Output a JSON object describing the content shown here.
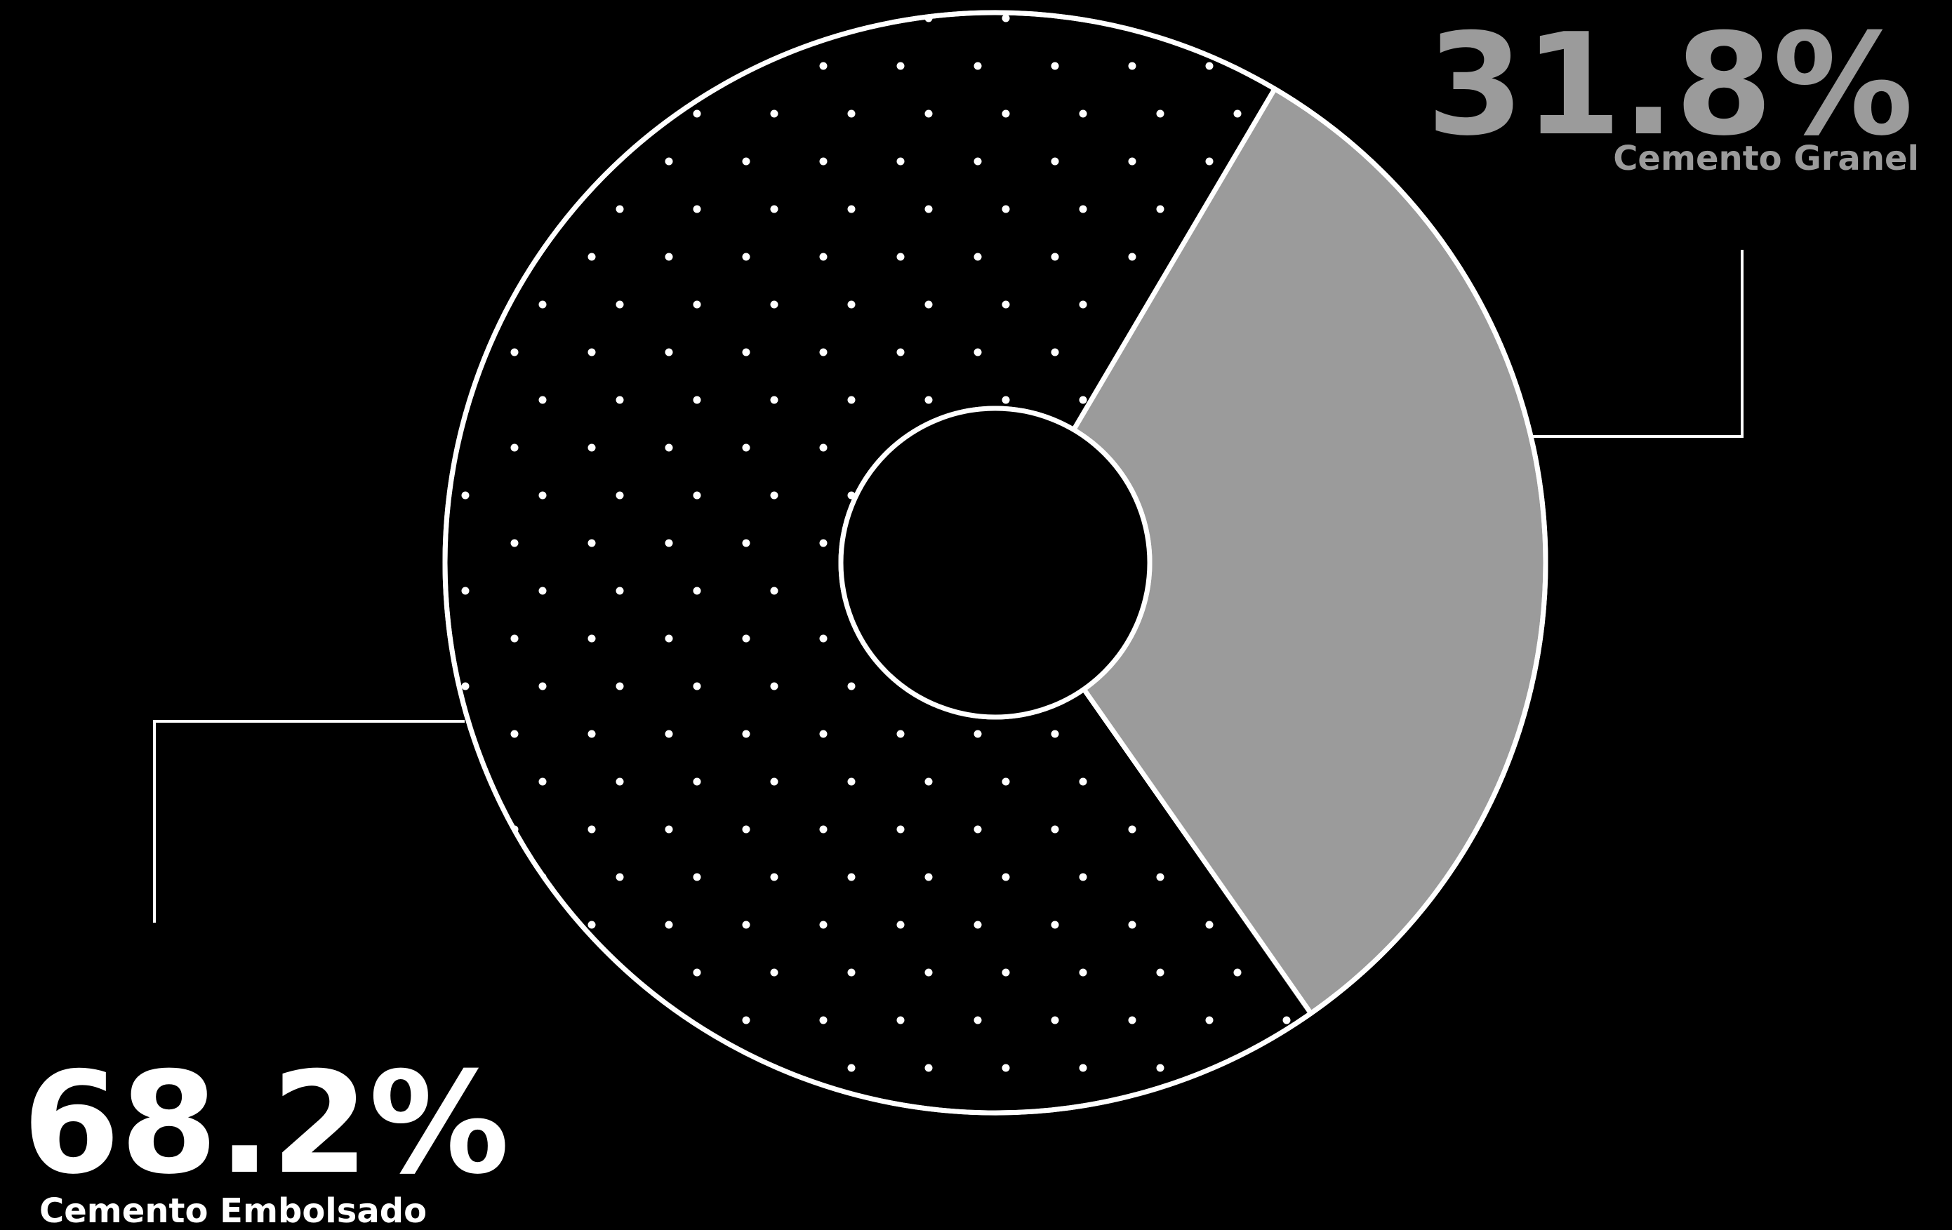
{
  "chart_data": {
    "type": "pie",
    "variant": "donut",
    "categories": [
      "Cemento Embolsado",
      "Cemento Granel"
    ],
    "values": [
      68.2,
      31.8
    ],
    "value_labels": [
      "68.2%",
      "31.8%"
    ],
    "colors": {
      "Cemento Embolsado": "#000000",
      "Cemento Granel": "#9b9b9b"
    },
    "fill_patterns": {
      "Cemento Embolsado": "white-dots",
      "Cemento Granel": "solid"
    },
    "label_colors": {
      "Cemento Embolsado": "#ffffff",
      "Cemento Granel": "#9b9b9b"
    },
    "outline_color": "#ffffff",
    "background": "#000000",
    "title": "",
    "legend": "none"
  }
}
